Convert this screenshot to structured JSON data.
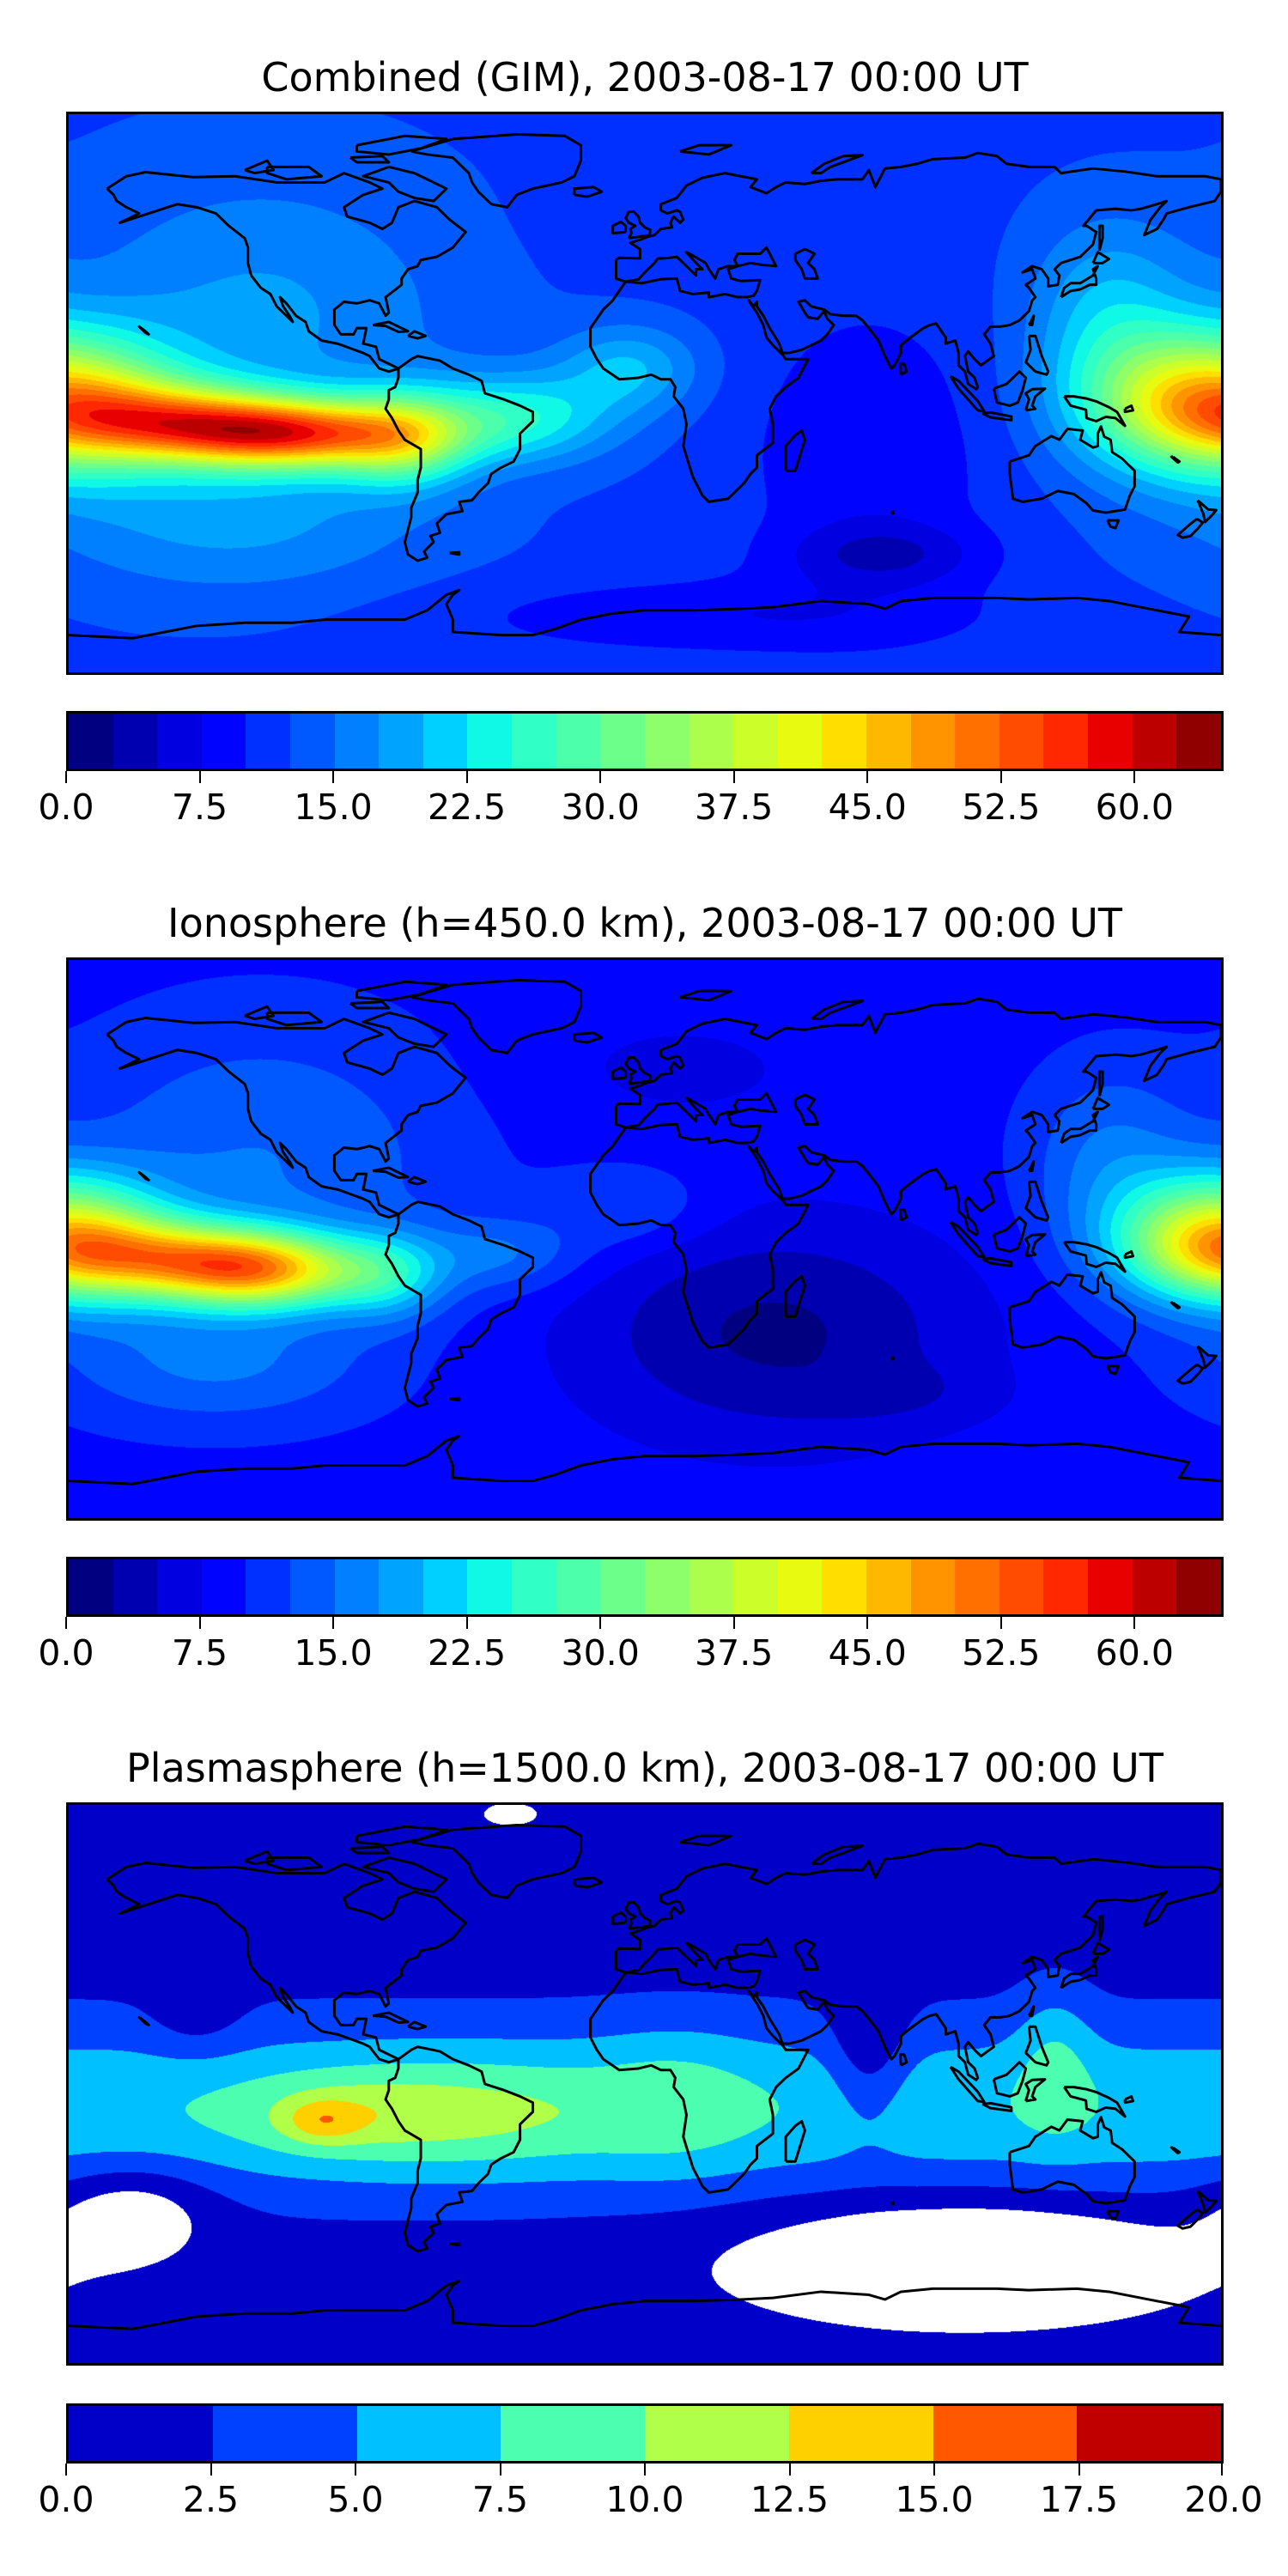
{
  "chart_data": [
    {
      "type": "heatmap",
      "title": "Combined (GIM), 2003-08-17 00:00 UT",
      "projection": "global lon/lat map with coastlines",
      "colorbar": {
        "levels_min": 0.0,
        "levels_max": 65.0,
        "level_step": 2.5,
        "ticks": [
          "0.0",
          "7.5",
          "15.0",
          "22.5",
          "30.0",
          "37.5",
          "45.0",
          "52.5",
          "60.0"
        ],
        "tick_values": [
          0,
          7.5,
          15,
          22.5,
          30,
          37.5,
          45,
          52.5,
          60
        ],
        "colors": [
          "#000080",
          "#0000b0",
          "#0000e0",
          "#0004ff",
          "#0030ff",
          "#0058ff",
          "#0080ff",
          "#00a4ff",
          "#00d0ff",
          "#10f8e6",
          "#30ffc6",
          "#4cffaa",
          "#6cff8a",
          "#8cff6a",
          "#acff4a",
          "#ccff2a",
          "#e8fa10",
          "#ffde00",
          "#ffb800",
          "#ff9400",
          "#ff7000",
          "#ff4c00",
          "#ff2800",
          "#e80000",
          "#bc0000",
          "#900000"
        ]
      },
      "features": {
        "max_value_approx": 62,
        "max_location": "eastern equatorial Pacific (~112W, 13S)",
        "secondary_max_approx": 47,
        "secondary_location": "western Pacific (~175E, 3S)",
        "min_value_approx": 2.5,
        "min_location": "southern Indian Ocean (~75E, 50S)"
      }
    },
    {
      "type": "heatmap",
      "title": "Ionosphere  (h=450.0 km), 2003-08-17 00:00 UT",
      "projection": "global lon/lat map with coastlines",
      "colorbar": {
        "levels_min": 0.0,
        "levels_max": 65.0,
        "level_step": 2.5,
        "ticks": [
          "0.0",
          "7.5",
          "15.0",
          "22.5",
          "30.0",
          "37.5",
          "45.0",
          "52.5",
          "60.0"
        ],
        "tick_values": [
          0,
          7.5,
          15,
          22.5,
          30,
          37.5,
          45,
          52.5,
          60
        ],
        "colors": [
          "#000080",
          "#0000b0",
          "#0000e0",
          "#0004ff",
          "#0030ff",
          "#0058ff",
          "#0080ff",
          "#00a4ff",
          "#00d0ff",
          "#10f8e6",
          "#30ffc6",
          "#4cffaa",
          "#6cff8a",
          "#8cff6a",
          "#acff4a",
          "#ccff2a",
          "#e8fa10",
          "#ffde00",
          "#ffb800",
          "#ff9400",
          "#ff7000",
          "#ff4c00",
          "#ff2800",
          "#e80000",
          "#bc0000",
          "#900000"
        ]
      },
      "features": {
        "max_value_approx": 46,
        "max_location": "eastern equatorial Pacific (~124W, 10S)",
        "secondary_max_approx": 40,
        "secondary_location": "western Pacific (~180, 0)",
        "min_value_approx": 1,
        "min_location": "South Atlantic / Indian Ocean"
      }
    },
    {
      "type": "heatmap",
      "title": "Plasmasphere (h=1500.0 km), 2003-08-17 00:00 UT",
      "projection": "global lon/lat map with coastlines",
      "colorbar": {
        "levels_min": 0.0,
        "levels_max": 20.0,
        "level_step": 2.5,
        "ticks": [
          "0.0",
          "2.5",
          "5.0",
          "7.5",
          "10.0",
          "12.5",
          "15.0",
          "17.5",
          "20.0"
        ],
        "tick_values": [
          0,
          2.5,
          5,
          7.5,
          10,
          12.5,
          15,
          17.5,
          20
        ],
        "colors": [
          "#0000c8",
          "#0040ff",
          "#00c0ff",
          "#4cffb0",
          "#b0ff48",
          "#ffd000",
          "#ff5800",
          "#c00000"
        ]
      },
      "features": {
        "max_value_approx": 13,
        "max_location": "eastern equatorial Pacific (~101W, 12S)",
        "min_value_approx": 0,
        "min_location": "polar regions; below-range patch over northern Greenland"
      }
    }
  ]
}
